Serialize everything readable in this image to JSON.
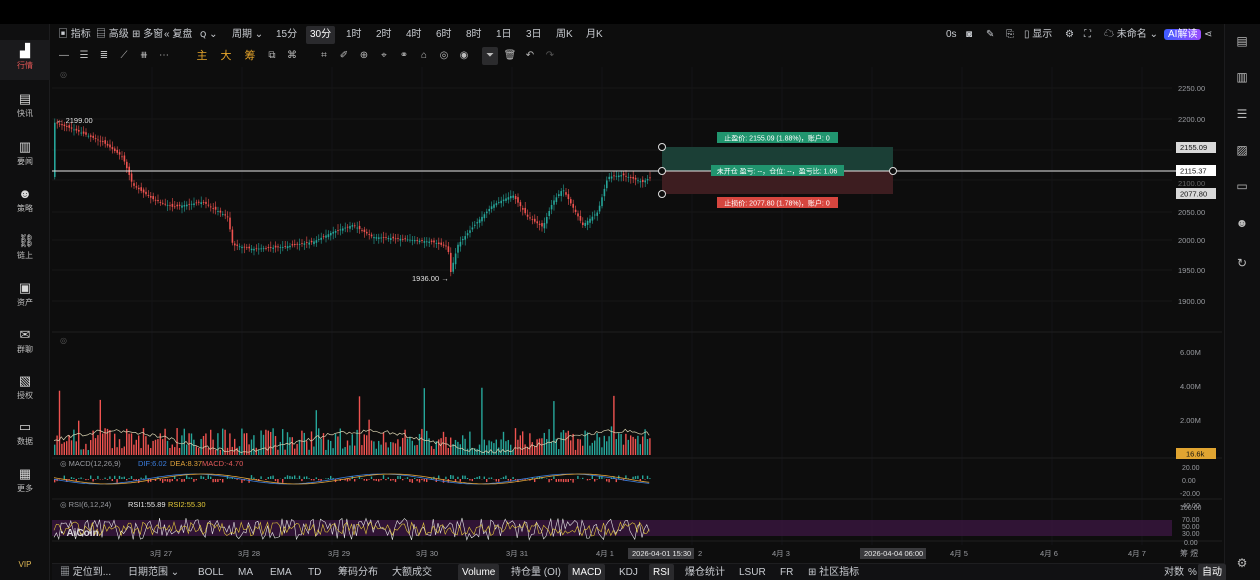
{
  "left_sidebar": {
    "items": [
      {
        "label": "行情",
        "icon": "bar-chart-icon"
      },
      {
        "label": "快讯",
        "icon": "news-icon"
      },
      {
        "label": "要闻",
        "icon": "document-icon"
      },
      {
        "label": "策略",
        "icon": "robot-icon"
      },
      {
        "label": "链上",
        "icon": "chain-icon"
      },
      {
        "label": "资产",
        "icon": "wallet-icon"
      },
      {
        "label": "群聊",
        "icon": "chat-icon"
      },
      {
        "label": "授权",
        "icon": "authorize-icon"
      },
      {
        "label": "数据",
        "icon": "monitor-icon"
      },
      {
        "label": "更多",
        "icon": "grid-icon"
      }
    ],
    "vip": "VIP"
  },
  "toolbar": {
    "indicators": "指标",
    "advanced": "高级",
    "multi_window": "多窗",
    "replay": "复盘",
    "period": "周期",
    "timeframes": [
      "15分",
      "30分",
      "1时",
      "2时",
      "4时",
      "6时",
      "8时",
      "1日",
      "3日",
      "周K",
      "月K"
    ],
    "active_timeframe": "30分",
    "countdown": "0s",
    "display": "显示",
    "unnamed": "未命名",
    "ai_badge": "AI解读"
  },
  "drawing_tools": [
    "主",
    "大",
    "筹"
  ],
  "price_axis": {
    "ticks": [
      "2250.00",
      "2200.00",
      "2150.00",
      "2100.00",
      "2050.00",
      "2000.00",
      "1950.00",
      "1900.00"
    ],
    "markers": [
      {
        "value": "2155.09",
        "type": "take-profit"
      },
      {
        "value": "2115.37",
        "type": "current"
      },
      {
        "value": "2077.80",
        "type": "stop-loss"
      }
    ]
  },
  "volume_axis": {
    "ticks": [
      "6.00M",
      "4.00M",
      "2.00M"
    ],
    "current": "16.6k"
  },
  "macd_axis": {
    "ticks": [
      "20.00",
      "0.00",
      "-20.00",
      "-40.00"
    ]
  },
  "rsi_axis": {
    "ticks": [
      "100.00",
      "70.00",
      "50.00",
      "30.00",
      "0.00"
    ]
  },
  "chart": {
    "high_label": "2199.00",
    "low_label": "1936.00",
    "take_profit_label": "止盈价: 2155.09 (1.88%)，账户: 0",
    "position_label": "未开仓 盈亏: --，仓位: --，盈亏比: 1.06",
    "stop_loss_label": "止损价: 2077.80 (1.78%)，账户: 0",
    "macd_legend": {
      "title": "MACD(12,26,9)",
      "dif": "DIF:6.02",
      "dea": "DEA:8.37",
      "macd": "MACD:-4.70"
    },
    "rsi_legend": {
      "title": "RSI(6,12,24)",
      "rsi1": "RSI1:55.89",
      "rsi2": "RSI2:55.30"
    },
    "watermark": "AiCoin",
    "colors": {
      "up": "#26a69a",
      "down": "#ef5350",
      "tp_zone": "#1e4a3e",
      "sl_zone": "#4a2023"
    }
  },
  "time_axis": {
    "labels": [
      "3月 27",
      "3月 28",
      "3月 29",
      "3月 30",
      "3月 31",
      "4月 1",
      "4月 3",
      "4月 5",
      "4月 6",
      "4月 7"
    ],
    "cursor_label": "2026-04-01 15:30",
    "cursor_suffix": "2",
    "right_label": "2026-04-04 06:00",
    "corner": "筹 煜"
  },
  "bottom_bar": {
    "locate": "定位到...",
    "date_range": "日期范围",
    "indicators": [
      "BOLL",
      "MA",
      "EMA",
      "TD",
      "筹码分布",
      "大额成交",
      "Volume",
      "持仓量 (OI)",
      "MACD",
      "KDJ",
      "RSI",
      "爆仓统计",
      "LSUR",
      "FR"
    ],
    "community": "社区指标",
    "log_scale": "对数",
    "percent": "%",
    "auto": "自动"
  }
}
